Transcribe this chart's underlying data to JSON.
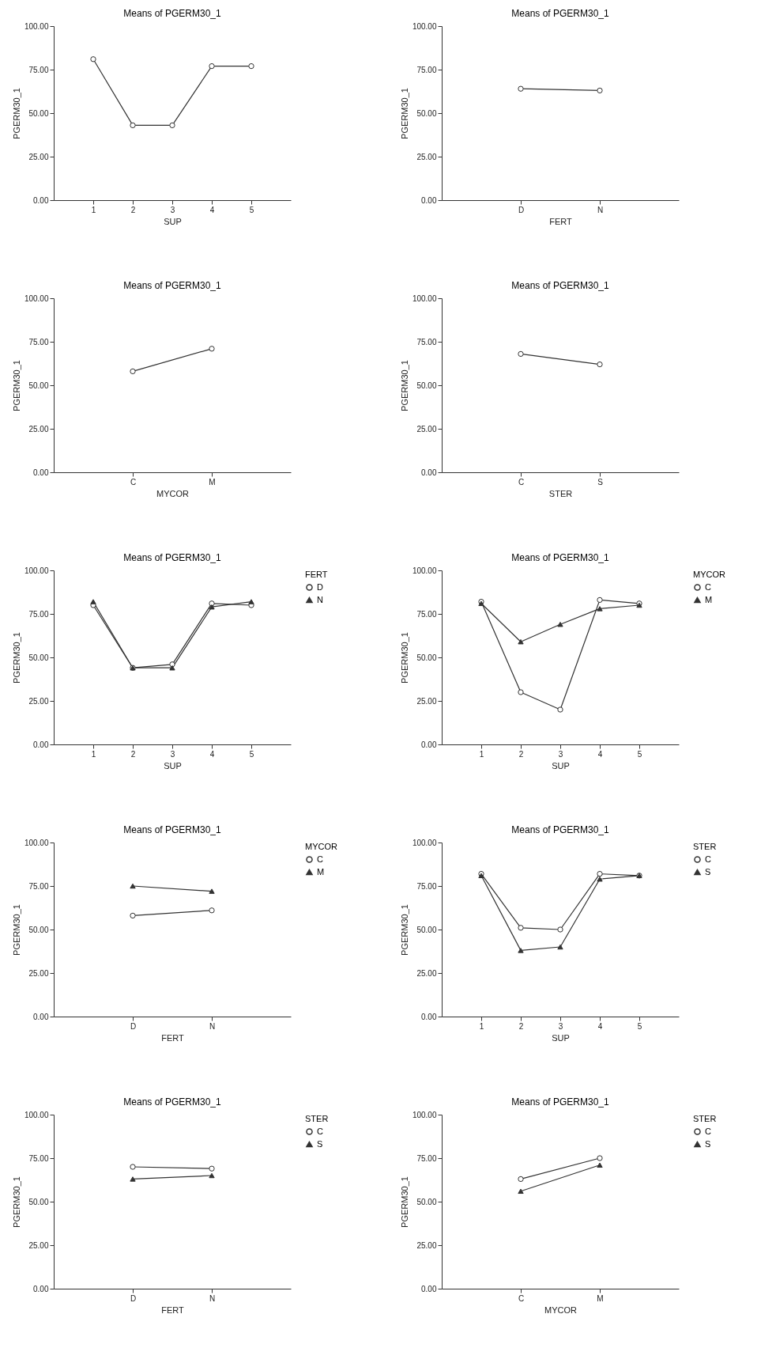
{
  "chart_data": [
    {
      "type": "line",
      "title": "Means of PGERM30_1",
      "xlabel": "SUP",
      "ylabel": "PGERM30_1",
      "categories": [
        "1",
        "2",
        "3",
        "4",
        "5"
      ],
      "series": [
        {
          "color": "#333333",
          "marker": "circle",
          "values": [
            81,
            43,
            43,
            77,
            77
          ]
        }
      ],
      "ylim": [
        0,
        100
      ],
      "yticks": [
        {
          "value": 0,
          "label": "0.00"
        },
        {
          "value": 25,
          "label": "25.00"
        },
        {
          "value": 50,
          "label": "50.00"
        },
        {
          "value": 75,
          "label": "75.00"
        },
        {
          "value": 100,
          "label": "100.00"
        }
      ]
    },
    {
      "type": "line",
      "title": "Means of PGERM30_1",
      "xlabel": "FERT",
      "ylabel": "PGERM30_1",
      "categories": [
        "D",
        "N"
      ],
      "series": [
        {
          "color": "#333333",
          "marker": "circle",
          "values": [
            64,
            63
          ]
        }
      ],
      "ylim": [
        0,
        100
      ],
      "yticks": [
        {
          "value": 0,
          "label": "0.00"
        },
        {
          "value": 25,
          "label": "25.00"
        },
        {
          "value": 50,
          "label": "50.00"
        },
        {
          "value": 75,
          "label": "75.00"
        },
        {
          "value": 100,
          "label": "100.00"
        }
      ]
    },
    {
      "type": "line",
      "title": "Means of PGERM30_1",
      "xlabel": "MYCOR",
      "ylabel": "PGERM30_1",
      "categories": [
        "C",
        "M"
      ],
      "series": [
        {
          "color": "#333333",
          "marker": "circle",
          "values": [
            58,
            71
          ]
        }
      ],
      "ylim": [
        0,
        100
      ],
      "yticks": [
        {
          "value": 0,
          "label": "0.00"
        },
        {
          "value": 25,
          "label": "25.00"
        },
        {
          "value": 50,
          "label": "50.00"
        },
        {
          "value": 75,
          "label": "75.00"
        },
        {
          "value": 100,
          "label": "100.00"
        }
      ]
    },
    {
      "type": "line",
      "title": "Means of PGERM30_1",
      "xlabel": "STER",
      "ylabel": "PGERM30_1",
      "categories": [
        "C",
        "S"
      ],
      "series": [
        {
          "color": "#333333",
          "marker": "circle",
          "values": [
            68,
            62
          ]
        }
      ],
      "ylim": [
        0,
        100
      ],
      "yticks": [
        {
          "value": 0,
          "label": "0.00"
        },
        {
          "value": 25,
          "label": "25.00"
        },
        {
          "value": 50,
          "label": "50.00"
        },
        {
          "value": 75,
          "label": "75.00"
        },
        {
          "value": 100,
          "label": "100.00"
        }
      ]
    },
    {
      "type": "line",
      "title": "Means of PGERM30_1",
      "xlabel": "SUP",
      "ylabel": "PGERM30_1",
      "legend_title": "FERT",
      "legend": "top right",
      "categories": [
        "1",
        "2",
        "3",
        "4",
        "5"
      ],
      "series": [
        {
          "name": "D",
          "color": "#333333",
          "marker": "circle",
          "values": [
            80,
            44,
            46,
            81,
            80
          ]
        },
        {
          "name": "N",
          "color": "#333333",
          "marker": "triangle",
          "values": [
            82,
            44,
            44,
            79,
            82
          ]
        }
      ],
      "ylim": [
        0,
        100
      ],
      "yticks": [
        {
          "value": 0,
          "label": "0.00"
        },
        {
          "value": 25,
          "label": "25.00"
        },
        {
          "value": 50,
          "label": "50.00"
        },
        {
          "value": 75,
          "label": "75.00"
        },
        {
          "value": 100,
          "label": "100.00"
        }
      ]
    },
    {
      "type": "line",
      "title": "Means of PGERM30_1",
      "xlabel": "SUP",
      "ylabel": "PGERM30_1",
      "legend_title": "MYCOR",
      "legend": "top right",
      "categories": [
        "1",
        "2",
        "3",
        "4",
        "5"
      ],
      "series": [
        {
          "name": "C",
          "color": "#333333",
          "marker": "circle",
          "values": [
            82,
            30,
            20,
            83,
            81
          ]
        },
        {
          "name": "M",
          "color": "#333333",
          "marker": "triangle",
          "values": [
            81,
            59,
            69,
            78,
            80
          ]
        }
      ],
      "ylim": [
        0,
        100
      ],
      "yticks": [
        {
          "value": 0,
          "label": "0.00"
        },
        {
          "value": 25,
          "label": "25.00"
        },
        {
          "value": 50,
          "label": "50.00"
        },
        {
          "value": 75,
          "label": "75.00"
        },
        {
          "value": 100,
          "label": "100.00"
        }
      ]
    },
    {
      "type": "line",
      "title": "Means of PGERM30_1",
      "xlabel": "FERT",
      "ylabel": "PGERM30_1",
      "legend_title": "MYCOR",
      "legend": "top right",
      "categories": [
        "D",
        "N"
      ],
      "series": [
        {
          "name": "C",
          "color": "#333333",
          "marker": "circle",
          "values": [
            58,
            61
          ]
        },
        {
          "name": "M",
          "color": "#333333",
          "marker": "triangle",
          "values": [
            75,
            72
          ]
        }
      ],
      "ylim": [
        0,
        100
      ],
      "yticks": [
        {
          "value": 0,
          "label": "0.00"
        },
        {
          "value": 25,
          "label": "25.00"
        },
        {
          "value": 50,
          "label": "50.00"
        },
        {
          "value": 75,
          "label": "75.00"
        },
        {
          "value": 100,
          "label": "100.00"
        }
      ]
    },
    {
      "type": "line",
      "title": "Means of PGERM30_1",
      "xlabel": "SUP",
      "ylabel": "PGERM30_1",
      "legend_title": "STER",
      "legend": "top right",
      "categories": [
        "1",
        "2",
        "3",
        "4",
        "5"
      ],
      "series": [
        {
          "name": "C",
          "color": "#333333",
          "marker": "circle",
          "values": [
            82,
            51,
            50,
            82,
            81
          ]
        },
        {
          "name": "S",
          "color": "#333333",
          "marker": "triangle",
          "values": [
            81,
            38,
            40,
            79,
            81
          ]
        }
      ],
      "ylim": [
        0,
        100
      ],
      "yticks": [
        {
          "value": 0,
          "label": "0.00"
        },
        {
          "value": 25,
          "label": "25.00"
        },
        {
          "value": 50,
          "label": "50.00"
        },
        {
          "value": 75,
          "label": "75.00"
        },
        {
          "value": 100,
          "label": "100.00"
        }
      ]
    },
    {
      "type": "line",
      "title": "Means of PGERM30_1",
      "xlabel": "FERT",
      "ylabel": "PGERM30_1",
      "legend_title": "STER",
      "legend": "top right",
      "categories": [
        "D",
        "N"
      ],
      "series": [
        {
          "name": "C",
          "color": "#333333",
          "marker": "circle",
          "values": [
            70,
            69
          ]
        },
        {
          "name": "S",
          "color": "#333333",
          "marker": "triangle",
          "values": [
            63,
            65
          ]
        }
      ],
      "ylim": [
        0,
        100
      ],
      "yticks": [
        {
          "value": 0,
          "label": "0.00"
        },
        {
          "value": 25,
          "label": "25.00"
        },
        {
          "value": 50,
          "label": "50.00"
        },
        {
          "value": 75,
          "label": "75.00"
        },
        {
          "value": 100,
          "label": "100.00"
        }
      ]
    },
    {
      "type": "line",
      "title": "Means of PGERM30_1",
      "xlabel": "MYCOR",
      "ylabel": "PGERM30_1",
      "legend_title": "STER",
      "legend": "top right",
      "categories": [
        "C",
        "M"
      ],
      "series": [
        {
          "name": "C",
          "color": "#333333",
          "marker": "circle",
          "values": [
            63,
            75
          ]
        },
        {
          "name": "S",
          "color": "#333333",
          "marker": "triangle",
          "values": [
            56,
            71
          ]
        }
      ],
      "ylim": [
        0,
        100
      ],
      "yticks": [
        {
          "value": 0,
          "label": "0.00"
        },
        {
          "value": 25,
          "label": "25.00"
        },
        {
          "value": 50,
          "label": "50.00"
        },
        {
          "value": 75,
          "label": "75.00"
        },
        {
          "value": 100,
          "label": "100.00"
        }
      ]
    }
  ]
}
